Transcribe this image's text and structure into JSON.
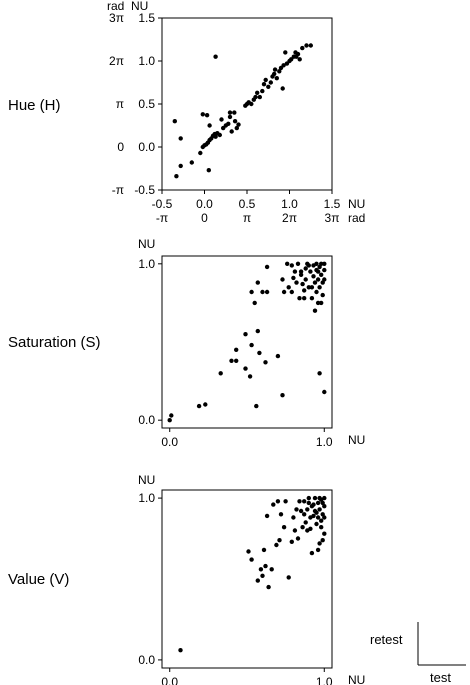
{
  "chart_data": [
    {
      "type": "scatter",
      "row_label": "Hue (H)",
      "xlim": [
        -0.5,
        1.5
      ],
      "ylim": [
        -0.5,
        1.5
      ],
      "x_ticks": [
        -0.5,
        0.0,
        0.5,
        1.0,
        1.5
      ],
      "x_tick_labels": [
        "-0.5",
        "0.0",
        "0.5",
        "1.0",
        "1.5"
      ],
      "x_unit": "NU",
      "x_ticks_secondary": [
        -0.5,
        0.0,
        0.5,
        1.0,
        1.5
      ],
      "x_tick_labels_secondary": [
        "-π",
        "0",
        "π",
        "2π",
        "3π"
      ],
      "x_unit_secondary": "rad",
      "y_ticks": [
        1.5,
        1.0,
        0.5,
        0.0,
        -0.5
      ],
      "y_tick_labels": [
        "1.5",
        "1.0",
        "0.5",
        "0.0",
        "-0.5"
      ],
      "y_unit": "NU",
      "y_ticks_secondary": [
        1.5,
        1.0,
        0.5,
        0.0,
        -0.5
      ],
      "y_tick_labels_secondary": [
        "3π",
        "2π",
        "π",
        "0",
        "-π"
      ],
      "y_unit_secondary": "rad",
      "points": [
        [
          -0.33,
          -0.34
        ],
        [
          -0.28,
          -0.22
        ],
        [
          -0.35,
          0.3
        ],
        [
          -0.28,
          0.1
        ],
        [
          -0.15,
          -0.18
        ],
        [
          -0.05,
          -0.07
        ],
        [
          -0.02,
          0.0
        ],
        [
          0.0,
          0.02
        ],
        [
          0.02,
          0.03
        ],
        [
          0.04,
          0.05
        ],
        [
          0.06,
          0.08
        ],
        [
          0.08,
          0.1
        ],
        [
          0.1,
          0.13
        ],
        [
          0.12,
          0.15
        ],
        [
          0.13,
          0.12
        ],
        [
          0.15,
          0.16
        ],
        [
          0.18,
          0.14
        ],
        [
          0.03,
          0.37
        ],
        [
          -0.02,
          0.38
        ],
        [
          0.06,
          0.25
        ],
        [
          0.2,
          0.32
        ],
        [
          0.22,
          0.22
        ],
        [
          0.25,
          0.25
        ],
        [
          0.28,
          0.27
        ],
        [
          0.3,
          0.35
        ],
        [
          0.3,
          0.4
        ],
        [
          0.35,
          0.4
        ],
        [
          0.36,
          0.3
        ],
        [
          0.38,
          0.22
        ],
        [
          0.4,
          0.26
        ],
        [
          0.32,
          0.18
        ],
        [
          0.13,
          1.05
        ],
        [
          0.05,
          -0.27
        ],
        [
          0.48,
          0.48
        ],
        [
          0.5,
          0.5
        ],
        [
          0.52,
          0.52
        ],
        [
          0.55,
          0.5
        ],
        [
          0.58,
          0.55
        ],
        [
          0.6,
          0.58
        ],
        [
          0.62,
          0.63
        ],
        [
          0.65,
          0.58
        ],
        [
          0.68,
          0.65
        ],
        [
          0.7,
          0.73
        ],
        [
          0.72,
          0.78
        ],
        [
          0.75,
          0.7
        ],
        [
          0.78,
          0.75
        ],
        [
          0.8,
          0.82
        ],
        [
          0.82,
          0.85
        ],
        [
          0.85,
          0.8
        ],
        [
          0.83,
          0.9
        ],
        [
          0.88,
          0.88
        ],
        [
          0.9,
          0.92
        ],
        [
          0.93,
          0.95
        ],
        [
          0.97,
          0.97
        ],
        [
          1.0,
          1.0
        ],
        [
          1.02,
          1.02
        ],
        [
          0.92,
          0.68
        ],
        [
          1.05,
          1.05
        ],
        [
          1.07,
          1.1
        ],
        [
          1.1,
          1.08
        ],
        [
          1.12,
          1.02
        ],
        [
          1.15,
          1.15
        ],
        [
          1.2,
          1.18
        ],
        [
          1.25,
          1.18
        ],
        [
          0.95,
          1.1
        ],
        [
          1.08,
          1.05
        ]
      ]
    },
    {
      "type": "scatter",
      "row_label": "Saturation (S)",
      "xlim": [
        -0.05,
        1.05
      ],
      "ylim": [
        -0.05,
        1.05
      ],
      "x_ticks": [
        0.0,
        1.0
      ],
      "x_tick_labels": [
        "0.0",
        "1.0"
      ],
      "x_unit": "NU",
      "y_ticks": [
        1.0,
        0.0
      ],
      "y_tick_labels": [
        "1.0",
        "0.0"
      ],
      "y_unit": "NU",
      "points": [
        [
          0.0,
          0.0
        ],
        [
          0.01,
          0.03
        ],
        [
          0.19,
          0.09
        ],
        [
          0.23,
          0.1
        ],
        [
          0.33,
          0.3
        ],
        [
          0.4,
          0.38
        ],
        [
          0.43,
          0.38
        ],
        [
          0.43,
          0.45
        ],
        [
          0.49,
          0.55
        ],
        [
          0.49,
          0.33
        ],
        [
          0.52,
          0.28
        ],
        [
          0.53,
          0.48
        ],
        [
          0.57,
          0.57
        ],
        [
          0.58,
          0.43
        ],
        [
          0.56,
          0.09
        ],
        [
          0.62,
          0.37
        ],
        [
          0.53,
          0.82
        ],
        [
          0.55,
          0.75
        ],
        [
          0.57,
          0.88
        ],
        [
          0.6,
          0.82
        ],
        [
          0.63,
          0.82
        ],
        [
          0.63,
          0.98
        ],
        [
          0.7,
          0.41
        ],
        [
          0.73,
          0.16
        ],
        [
          0.73,
          0.9
        ],
        [
          0.74,
          0.82
        ],
        [
          0.76,
          1.0
        ],
        [
          0.77,
          0.85
        ],
        [
          0.79,
          0.99
        ],
        [
          0.8,
          0.91
        ],
        [
          0.82,
          0.88
        ],
        [
          0.83,
          1.0
        ],
        [
          0.84,
          0.78
        ],
        [
          0.85,
          0.93
        ],
        [
          0.86,
          0.87
        ],
        [
          0.87,
          0.83
        ],
        [
          0.88,
          0.97
        ],
        [
          0.88,
          0.9
        ],
        [
          0.89,
          1.0
        ],
        [
          0.9,
          0.85
        ],
        [
          0.91,
          0.95
        ],
        [
          0.92,
          0.78
        ],
        [
          0.93,
          0.92
        ],
        [
          0.93,
          0.99
        ],
        [
          0.94,
          0.88
        ],
        [
          0.95,
          0.82
        ],
        [
          0.95,
          0.96
        ],
        [
          0.96,
          0.75
        ],
        [
          0.96,
          0.9
        ],
        [
          0.97,
          0.98
        ],
        [
          0.97,
          0.85
        ],
        [
          0.98,
          0.93
        ],
        [
          0.98,
          1.0
        ],
        [
          0.99,
          0.88
        ],
        [
          1.0,
          0.96
        ],
        [
          0.94,
          0.7
        ],
        [
          0.97,
          0.3
        ],
        [
          1.0,
          0.18
        ],
        [
          0.98,
          0.75
        ],
        [
          0.85,
          0.95
        ],
        [
          0.9,
          0.99
        ],
        [
          0.92,
          0.85
        ],
        [
          0.87,
          0.78
        ],
        [
          1.0,
          0.9
        ],
        [
          0.99,
          0.8
        ],
        [
          0.79,
          0.82
        ],
        [
          0.81,
          0.95
        ],
        [
          0.95,
          1.0
        ],
        [
          1.0,
          1.0
        ],
        [
          0.96,
          0.95
        ]
      ]
    },
    {
      "type": "scatter",
      "row_label": "Value (V)",
      "xlim": [
        -0.05,
        1.05
      ],
      "ylim": [
        -0.05,
        1.05
      ],
      "x_ticks": [
        0.0,
        1.0
      ],
      "x_tick_labels": [
        "0.0",
        "1.0"
      ],
      "x_unit": "NU",
      "y_ticks": [
        1.0,
        0.0
      ],
      "y_tick_labels": [
        "1.0",
        "0.0"
      ],
      "y_unit": "NU",
      "points": [
        [
          0.07,
          0.06
        ],
        [
          0.51,
          0.67
        ],
        [
          0.53,
          0.62
        ],
        [
          0.57,
          0.49
        ],
        [
          0.6,
          0.52
        ],
        [
          0.59,
          0.56
        ],
        [
          0.62,
          0.58
        ],
        [
          0.61,
          0.68
        ],
        [
          0.64,
          0.45
        ],
        [
          0.66,
          0.56
        ],
        [
          0.69,
          0.71
        ],
        [
          0.71,
          0.74
        ],
        [
          0.74,
          0.82
        ],
        [
          0.77,
          0.51
        ],
        [
          0.79,
          0.73
        ],
        [
          0.81,
          0.8
        ],
        [
          0.83,
          0.75
        ],
        [
          0.84,
          0.98
        ],
        [
          0.86,
          0.82
        ],
        [
          0.87,
          0.9
        ],
        [
          0.88,
          0.85
        ],
        [
          0.89,
          0.93
        ],
        [
          0.9,
          0.97
        ],
        [
          0.91,
          0.81
        ],
        [
          0.92,
          0.95
        ],
        [
          0.93,
          0.89
        ],
        [
          0.94,
          1.0
        ],
        [
          0.95,
          0.91
        ],
        [
          0.95,
          0.84
        ],
        [
          0.96,
          0.97
        ],
        [
          0.97,
          0.93
        ],
        [
          0.97,
          0.72
        ],
        [
          0.98,
          0.86
        ],
        [
          0.98,
          0.99
        ],
        [
          0.99,
          0.9
        ],
        [
          1.0,
          0.95
        ],
        [
          1.0,
          0.78
        ],
        [
          0.92,
          0.66
        ],
        [
          0.96,
          0.68
        ],
        [
          0.99,
          0.74
        ],
        [
          0.63,
          0.89
        ],
        [
          0.67,
          0.96
        ],
        [
          0.7,
          0.98
        ],
        [
          0.72,
          0.9
        ],
        [
          0.75,
          0.98
        ],
        [
          0.8,
          0.88
        ],
        [
          0.82,
          0.93
        ],
        [
          0.85,
          0.92
        ],
        [
          0.87,
          0.98
        ],
        [
          0.9,
          1.0
        ],
        [
          0.91,
          0.88
        ],
        [
          0.93,
          0.96
        ],
        [
          0.94,
          0.92
        ],
        [
          0.96,
          0.88
        ],
        [
          0.97,
          1.0
        ],
        [
          0.99,
          0.97
        ],
        [
          1.0,
          1.0
        ],
        [
          1.0,
          0.88
        ],
        [
          0.98,
          0.82
        ],
        [
          0.89,
          0.8
        ]
      ]
    }
  ],
  "legend": {
    "y_label": "retest",
    "x_label": "test"
  }
}
